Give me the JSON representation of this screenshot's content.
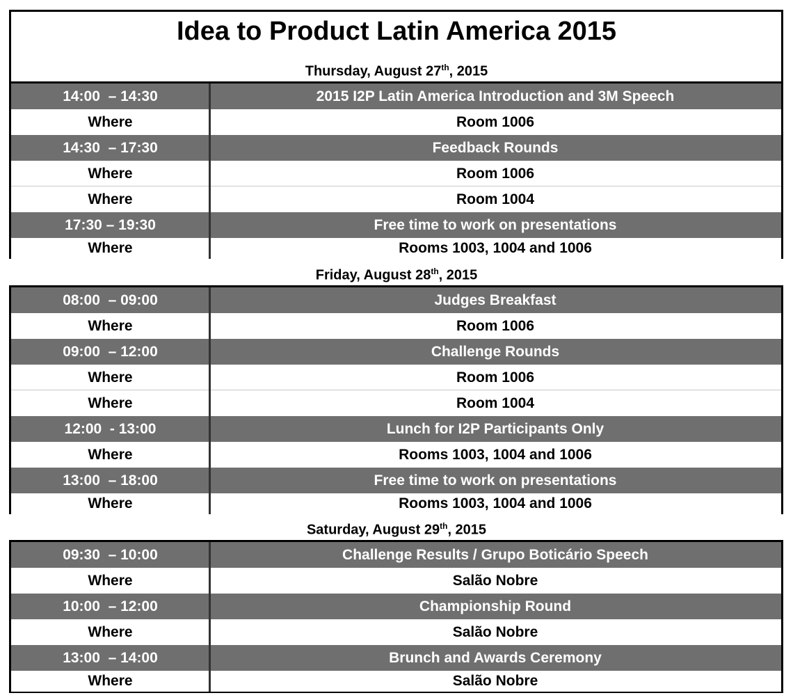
{
  "title": "Idea to Product Latin America 2015",
  "days": [
    {
      "heading": {
        "before": "Thursday, August 27",
        "sup": "th",
        "after": ", 2015"
      },
      "sessions": [
        {
          "time": "14:00  – 14:30",
          "title": "2015 I2P Latin America Introduction and 3M Speech",
          "where": [
            [
              "Where",
              "Room 1006"
            ]
          ]
        },
        {
          "time": "14:30  – 17:30",
          "title": "Feedback Rounds",
          "where": [
            [
              "Where",
              "Room 1006"
            ],
            [
              "Where",
              "Room 1004"
            ]
          ]
        },
        {
          "time": "17:30 – 19:30",
          "title": "Free time to work on presentations",
          "where": [
            [
              "Where",
              "Rooms 1003, 1004 and 1006"
            ]
          ]
        }
      ]
    },
    {
      "heading": {
        "before": "Friday, August 28",
        "sup": "th",
        "after": ", 2015"
      },
      "sessions": [
        {
          "time": "08:00  – 09:00",
          "title": "Judges Breakfast",
          "where": [
            [
              "Where",
              "Room 1006"
            ]
          ]
        },
        {
          "time": "09:00  – 12:00",
          "title": "Challenge Rounds",
          "where": [
            [
              "Where",
              "Room 1006"
            ],
            [
              "Where",
              "Room 1004"
            ]
          ]
        },
        {
          "time": "12:00  - 13:00",
          "title": "Lunch for I2P Participants Only",
          "where": [
            [
              "Where",
              "Rooms 1003, 1004 and 1006"
            ]
          ]
        },
        {
          "time": "13:00  – 18:00",
          "title": "Free time to work on presentations",
          "where": [
            [
              "Where",
              "Rooms 1003, 1004 and 1006"
            ]
          ]
        }
      ]
    },
    {
      "heading": {
        "before": "Saturday, August 29",
        "sup": "th",
        "after": ", 2015"
      },
      "sessions": [
        {
          "time": "09:30  – 10:00",
          "title": "Challenge Results / Grupo Boticário Speech",
          "where": [
            [
              "Where",
              "Salão Nobre"
            ]
          ]
        },
        {
          "time": "10:00  – 12:00",
          "title": "Championship Round",
          "where": [
            [
              "Where",
              "Salão Nobre"
            ]
          ]
        },
        {
          "time": "13:00  – 14:00",
          "title": "Brunch and Awards Ceremony",
          "where": [
            [
              "Where",
              "Salão Nobre"
            ]
          ]
        }
      ]
    }
  ]
}
